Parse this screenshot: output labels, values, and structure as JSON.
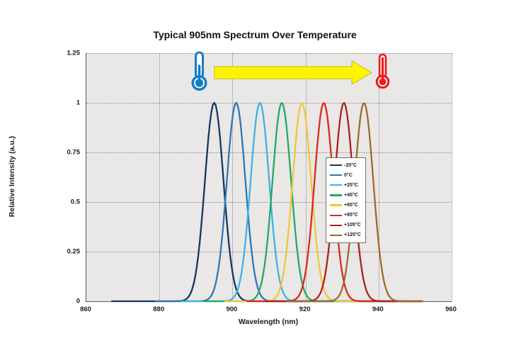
{
  "chart_data": {
    "type": "line",
    "title": "Typical 905nm Spectrum Over Temperature",
    "xlabel": "Wavelength (nm)",
    "ylabel": "Relative Intensity (a.u.)",
    "xlim": [
      860,
      960
    ],
    "ylim": [
      0,
      1.25
    ],
    "xticks": [
      860,
      880,
      900,
      920,
      940,
      960
    ],
    "yticks": [
      0,
      0.25,
      0.5,
      0.75,
      1,
      1.25
    ],
    "grid": true,
    "legend_position": "lower right",
    "curve_model": "gaussian",
    "sigma_nm": 2.55,
    "peak_intensity": 1.0,
    "trace_end_nm": 952,
    "series": [
      {
        "name": "-20°C",
        "color": "#17365d",
        "peak_nm": 895.0,
        "trace_start_nm": 867
      },
      {
        "name": "0°C",
        "color": "#2e75b6",
        "peak_nm": 901.0,
        "trace_start_nm": 879
      },
      {
        "name": "+25°C",
        "color": "#3fb1e3",
        "peak_nm": 907.5,
        "trace_start_nm": 886
      },
      {
        "name": "+45°C",
        "color": "#23a966",
        "peak_nm": 913.5,
        "trace_start_nm": 892
      },
      {
        "name": "+65°C",
        "color": "#edc63c",
        "peak_nm": 919.0,
        "trace_start_nm": 898
      },
      {
        "name": "+85°C",
        "color": "#da291e",
        "peak_nm": 925.0,
        "trace_start_nm": 904
      },
      {
        "name": "+105°C",
        "color": "#ab211d",
        "peak_nm": 930.5,
        "trace_start_nm": 909
      },
      {
        "name": "+125°C",
        "color": "#9c6a2e",
        "peak_nm": 936.0,
        "trace_start_nm": 915
      }
    ],
    "annotations": {
      "cold_thermometer_color": "#147dc2",
      "hot_thermometer_color": "#e8201a",
      "arrow_fill_color": "#fdf500",
      "arrow_outline_color": "#c9bd00",
      "arrow_direction": "right"
    }
  }
}
